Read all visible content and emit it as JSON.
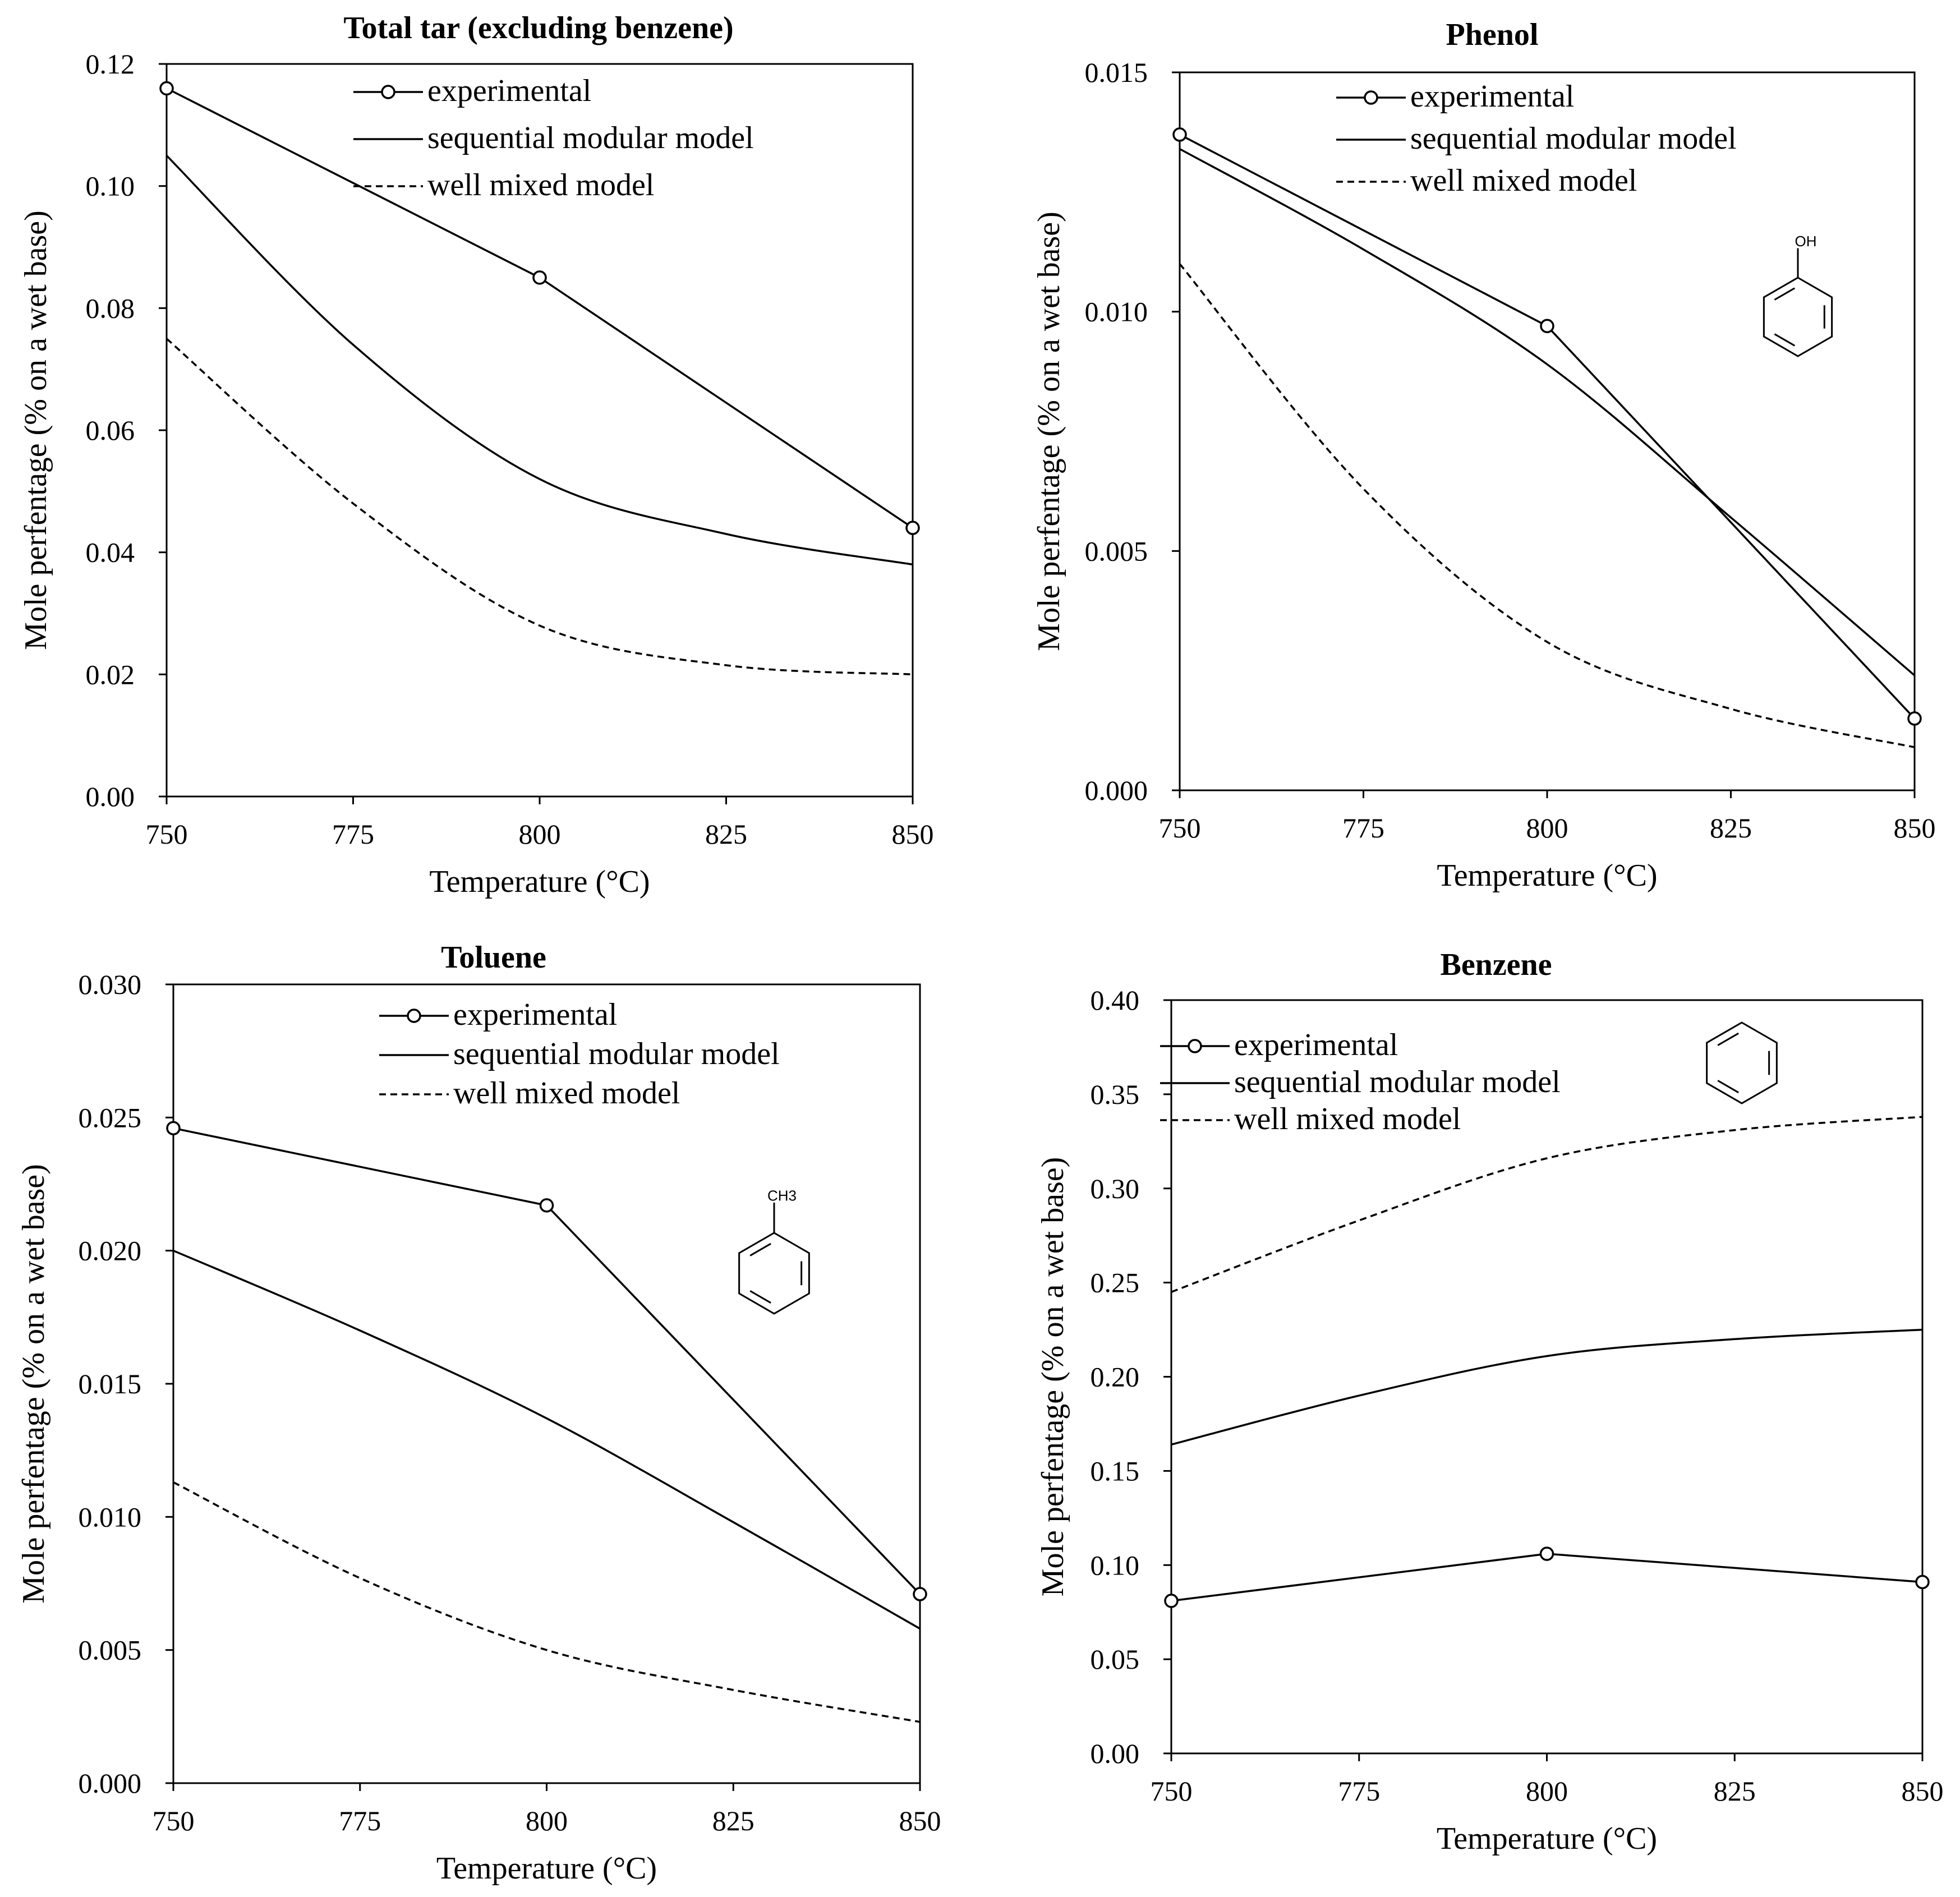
{
  "chart_data": [
    {
      "id": "total_tar",
      "type": "line",
      "title": "Total tar (excluding benzene)",
      "xlabel": "Temperature (°C)",
      "ylabel": "Mole perfentage (% on a wet base)",
      "xlim": [
        750,
        850
      ],
      "ylim": [
        0,
        0.12
      ],
      "xticks": [
        "750",
        "775",
        "800",
        "825",
        "850"
      ],
      "yticks": [
        "0.00",
        "0.02",
        "0.04",
        "0.06",
        "0.08",
        "0.10",
        "0.12"
      ],
      "molecule": null,
      "legend_position": "top-center",
      "series": [
        {
          "name": "experimental",
          "style": "solid-marker",
          "x": [
            750,
            800,
            850
          ],
          "y": [
            0.116,
            0.085,
            0.044
          ]
        },
        {
          "name": "sequential modular model",
          "style": "solid",
          "x": [
            750,
            775,
            800,
            825,
            850
          ],
          "y": [
            0.105,
            0.074,
            0.052,
            0.043,
            0.038
          ]
        },
        {
          "name": "well mixed model",
          "style": "dashed",
          "x": [
            750,
            775,
            800,
            825,
            850
          ],
          "y": [
            0.075,
            0.048,
            0.028,
            0.0215,
            0.02
          ]
        }
      ]
    },
    {
      "id": "phenol",
      "type": "line",
      "title": "Phenol",
      "xlabel": "Temperature (°C)",
      "ylabel": "Mole perfentage (% on a wet base)",
      "xlim": [
        750,
        850
      ],
      "ylim": [
        0,
        0.015
      ],
      "xticks": [
        "750",
        "775",
        "800",
        "825",
        "850"
      ],
      "yticks": [
        "0.000",
        "0.005",
        "0.010",
        "0.015"
      ],
      "molecule": "OH",
      "legend_position": "top-center",
      "series": [
        {
          "name": "experimental",
          "style": "solid-marker",
          "x": [
            750,
            800,
            850
          ],
          "y": [
            0.0137,
            0.0097,
            0.0015
          ]
        },
        {
          "name": "sequential modular model",
          "style": "solid",
          "x": [
            750,
            775,
            800,
            825,
            850
          ],
          "y": [
            0.0134,
            0.0113,
            0.0089,
            0.0057,
            0.0024
          ]
        },
        {
          "name": "well mixed model",
          "style": "dashed",
          "x": [
            750,
            775,
            800,
            825,
            850
          ],
          "y": [
            0.011,
            0.0063,
            0.0031,
            0.0017,
            0.0009
          ]
        }
      ]
    },
    {
      "id": "toluene",
      "type": "line",
      "title": "Toluene",
      "xlabel": "Temperature (°C)",
      "ylabel": "Mole perfentage (% on a wet base)",
      "xlim": [
        750,
        850
      ],
      "ylim": [
        0,
        0.03
      ],
      "xticks": [
        "750",
        "775",
        "800",
        "825",
        "850"
      ],
      "yticks": [
        "0.000",
        "0.005",
        "0.010",
        "0.015",
        "0.020",
        "0.025",
        "0.030"
      ],
      "molecule": "CH3",
      "legend_position": "top-center",
      "series": [
        {
          "name": "experimental",
          "style": "solid-marker",
          "x": [
            750,
            800,
            850
          ],
          "y": [
            0.0246,
            0.0217,
            0.0071
          ]
        },
        {
          "name": "sequential modular model",
          "style": "solid",
          "x": [
            750,
            775,
            800,
            825,
            850
          ],
          "y": [
            0.02,
            0.017,
            0.0137,
            0.0098,
            0.0058
          ]
        },
        {
          "name": "well mixed model",
          "style": "dashed",
          "x": [
            750,
            775,
            800,
            825,
            850
          ],
          "y": [
            0.0113,
            0.0077,
            0.005,
            0.0035,
            0.0023
          ]
        }
      ]
    },
    {
      "id": "benzene",
      "type": "line",
      "title": "Benzene",
      "xlabel": "Temperature (°C)",
      "ylabel": "Mole perfentage (% on a wet base)",
      "xlim": [
        750,
        850
      ],
      "ylim": [
        0,
        0.4
      ],
      "xticks": [
        "750",
        "775",
        "800",
        "825",
        "850"
      ],
      "yticks": [
        "0.00",
        "0.05",
        "0.10",
        "0.15",
        "0.20",
        "0.25",
        "0.30",
        "0.35",
        "0.40"
      ],
      "molecule": "",
      "legend_position": "top-left",
      "series": [
        {
          "name": "experimental",
          "style": "solid-marker",
          "x": [
            750,
            800,
            850
          ],
          "y": [
            0.081,
            0.106,
            0.091
          ]
        },
        {
          "name": "sequential modular model",
          "style": "solid",
          "x": [
            750,
            775,
            800,
            825,
            850
          ],
          "y": [
            0.164,
            0.19,
            0.211,
            0.22,
            0.225
          ]
        },
        {
          "name": "well mixed model",
          "style": "dashed",
          "x": [
            750,
            775,
            800,
            825,
            850
          ],
          "y": [
            0.245,
            0.283,
            0.316,
            0.331,
            0.338
          ]
        }
      ]
    }
  ]
}
